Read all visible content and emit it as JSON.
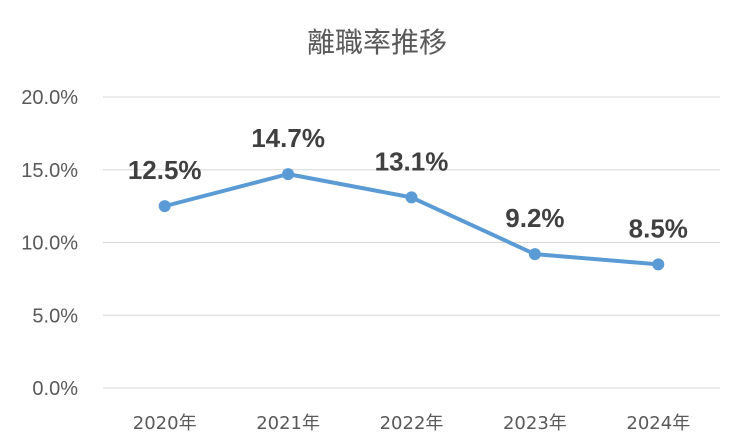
{
  "chart_data": {
    "type": "line",
    "title": "離職率推移",
    "categories": [
      "2020年",
      "2021年",
      "2022年",
      "2023年",
      "2024年"
    ],
    "series": [
      {
        "values": [
          12.5,
          14.7,
          13.1,
          9.2,
          8.5
        ],
        "data_labels": [
          "12.5%",
          "14.7%",
          "13.1%",
          "9.2%",
          "8.5%"
        ],
        "color": "#5b9bd5"
      }
    ],
    "yticks": [
      "0.0%",
      "5.0%",
      "10.0%",
      "15.0%",
      "20.0%"
    ],
    "ylim": [
      0,
      20
    ],
    "grid": true,
    "legend": "none"
  }
}
